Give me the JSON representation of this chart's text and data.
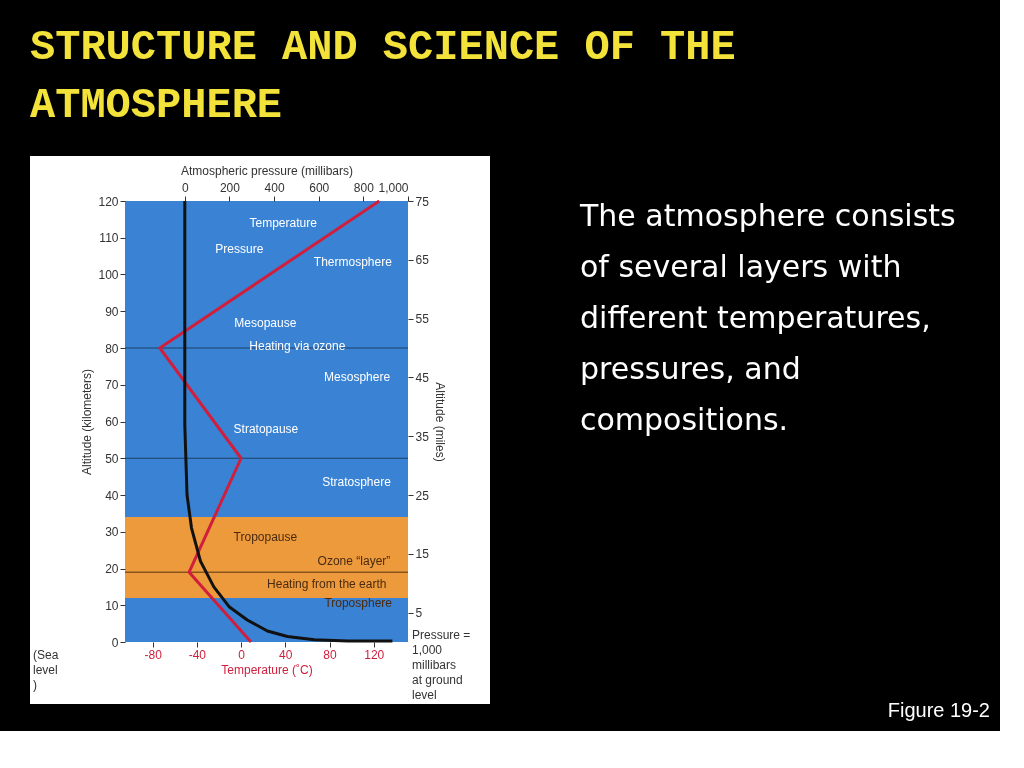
{
  "chart_data": {
    "type": "line",
    "title": "STRUCTURE AND SCIENCE OF THE ATMOSPHERE",
    "xlabel": "Temperature (˚C)",
    "x2label": "Atmospheric pressure (millibars)",
    "ylabel": "Altitude (kilometers)",
    "y2label": "Altitude (miles)",
    "xlim": [
      -105,
      151
    ],
    "xticks": [
      -80,
      -40,
      0,
      40,
      80,
      120
    ],
    "x2lim": [
      -268,
      1000
    ],
    "x2ticks": [
      0,
      200,
      400,
      600,
      800,
      {
        "value": 1000,
        "label": "1,000"
      }
    ],
    "ylim": [
      0,
      120
    ],
    "yticks": [
      0,
      10,
      20,
      30,
      40,
      50,
      60,
      70,
      80,
      90,
      100,
      110,
      120
    ],
    "y2lim": [
      0,
      75
    ],
    "y2ticks": [
      5,
      15,
      25,
      35,
      45,
      55,
      65,
      75
    ],
    "series": [
      {
        "color": "#d01f3c",
        "x": [
          9,
          -47,
          0,
          -73.5,
          125
        ],
        "values": [
          0,
          19,
          50,
          80,
          120
        ]
      },
      {
        "color": "#111111",
        "axis": "x2",
        "x": [
          0,
          0,
          0,
          10,
          30,
          70,
          130,
          200,
          280,
          370,
          460,
          580,
          730,
          930
        ],
        "values": [
          120,
          70,
          59,
          40,
          31,
          22,
          15,
          9.5,
          6,
          3,
          1.5,
          0.6,
          0.3,
          0.3
        ]
      }
    ],
    "ref_lines": [
      {
        "axis": "y",
        "value": 80,
        "color": "#1d3f66"
      },
      {
        "axis": "y",
        "value": 50,
        "color": "#1d3f66"
      },
      {
        "axis": "y",
        "value": 19,
        "color": "#5a3210"
      }
    ],
    "bands": [
      {
        "axis": "y",
        "from": 12,
        "to": 34,
        "color": "#ec9a3c"
      }
    ],
    "annotations": [
      "Temperature",
      "Pressure",
      "Thermosphere",
      "Mesopause",
      "Heating via ozone",
      "Mesosphere",
      "Stratopause",
      "Stratosphere",
      "Tropopause",
      "Ozone “layer”",
      "Heating from the earth",
      "Troposphere",
      "(Sea level)",
      "Pressure = 1,000 millibars at ground level",
      "The atmosphere consists of several layers with different temperatures, pressures, and compositions.",
      "Figure 19-2"
    ]
  }
}
